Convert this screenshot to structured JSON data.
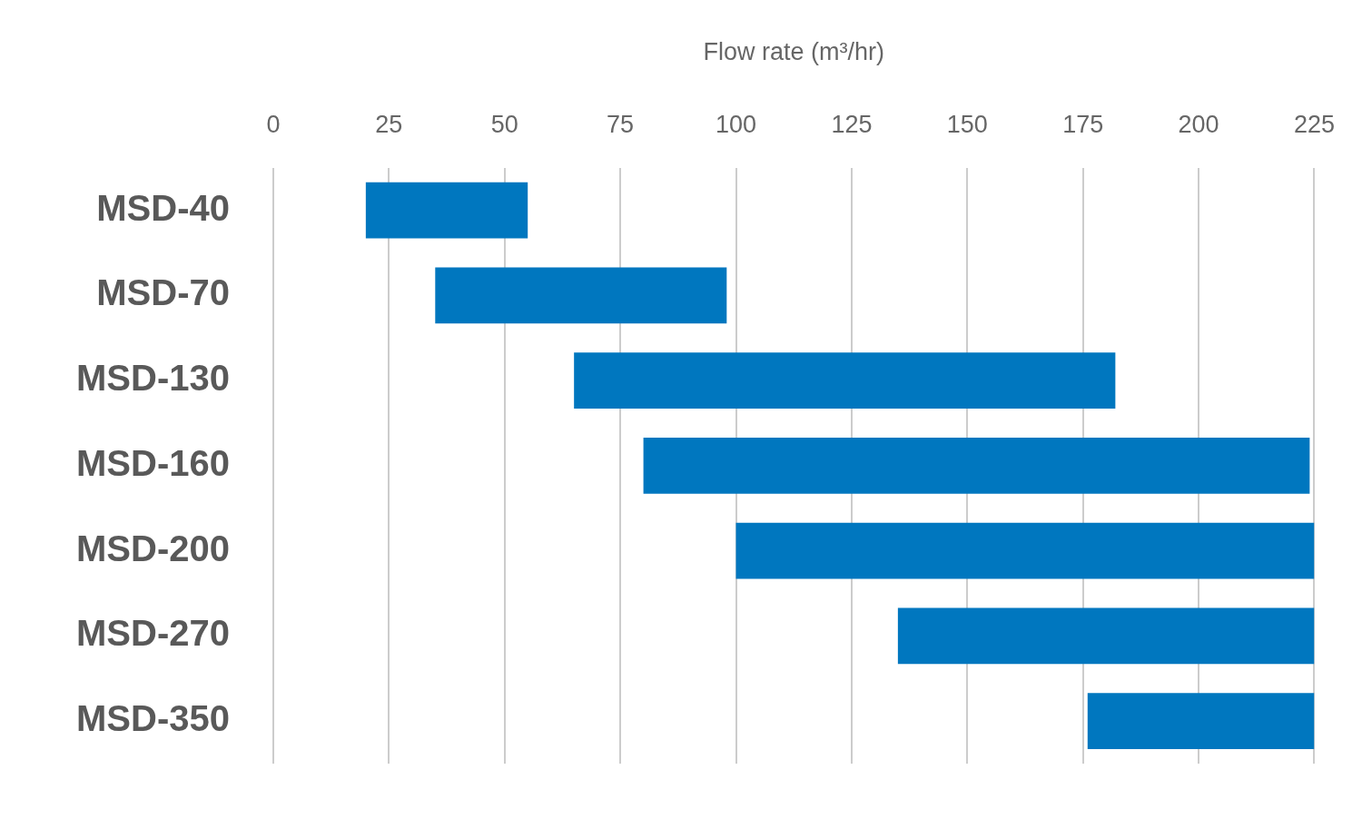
{
  "chart_data": {
    "type": "bar",
    "orientation": "horizontal",
    "xlabel": "Flow rate (m³/hr)",
    "categories": [
      "MSD-40",
      "MSD-70",
      "MSD-130",
      "MSD-160",
      "MSD-200",
      "MSD-270",
      "MSD-350"
    ],
    "values": [
      [
        20,
        55
      ],
      [
        35,
        98
      ],
      [
        65,
        182
      ],
      [
        80,
        224
      ],
      [
        100,
        225
      ],
      [
        135,
        225
      ],
      [
        176,
        225
      ]
    ],
    "color": "#0077bf",
    "xlim": [
      0,
      225
    ],
    "xticks": [
      0,
      25,
      50,
      75,
      100,
      125,
      150,
      175,
      200,
      225
    ],
    "grid": true
  }
}
